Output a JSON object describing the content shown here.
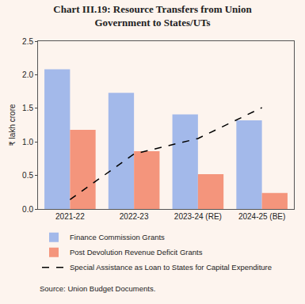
{
  "chart_data": {
    "type": "bar",
    "title": [
      "Chart III.19: Resource Transfers from Union",
      "Government to States/UTs"
    ],
    "y_label": "₹ lakh crore",
    "source": "Source: Union Budget Documents.",
    "categories": [
      "2021-22",
      "2022-23",
      "2023-24 (RE)",
      "2024-25 (BE)"
    ],
    "series": [
      {
        "name": "Finance Commission Grants",
        "type": "bar",
        "color": "#a3b9ea",
        "values": [
          2.08,
          1.73,
          1.41,
          1.32
        ]
      },
      {
        "name": "Post Devolution Revenue Deficit Grants",
        "type": "bar",
        "color": "#f4957c",
        "values": [
          1.18,
          0.86,
          0.52,
          0.24
        ]
      },
      {
        "name": "Special Assistance as Loan to States for Capital Expenditure",
        "type": "line",
        "color": "#000000",
        "line_style": "dashed",
        "values": [
          0.14,
          0.82,
          1.05,
          1.51
        ]
      }
    ],
    "ylim": [
      0,
      2.5
    ],
    "yticks": [
      {
        "value": 0,
        "label": "0.0"
      },
      0.5,
      {
        "value": 1,
        "label": "1.0"
      },
      1.5,
      {
        "value": 2,
        "label": "2.0"
      },
      2.5
    ],
    "grid": false,
    "legend": "bottom"
  }
}
